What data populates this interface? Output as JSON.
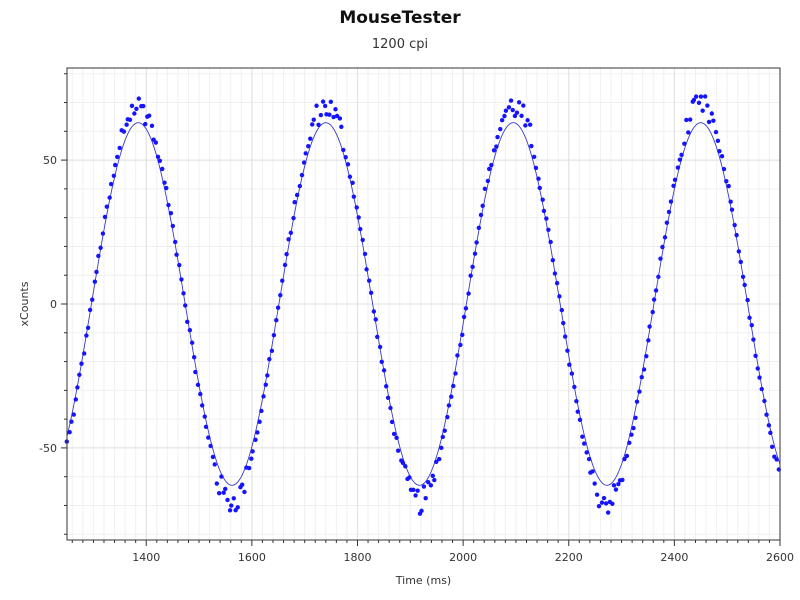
{
  "chart_data": {
    "type": "scatter",
    "title": "MouseTester",
    "subtitle": "1200 cpi",
    "xlabel": "Time (ms)",
    "ylabel": "xCounts",
    "xlim": [
      1250,
      2600
    ],
    "ylim": [
      -82,
      82
    ],
    "xticks": [
      1400,
      1600,
      1800,
      2000,
      2200,
      2400,
      2600
    ],
    "yticks": [
      -50,
      0,
      50
    ],
    "grid": true,
    "legend": "none",
    "colors": {
      "points": "#1414ff",
      "line": "#3a3ac8"
    },
    "series": [
      {
        "style": "points",
        "model": "sine",
        "x_start": 1250,
        "x_end": 2600,
        "x_step": 4,
        "amplitude": 66,
        "period_ms": 355,
        "phase_ms": 1385,
        "offset": 0
      },
      {
        "style": "line",
        "model": "sine",
        "x_start": 1250,
        "x_end": 2600,
        "x_step": 2,
        "amplitude": 63,
        "period_ms": 355,
        "phase_ms": 1385,
        "offset": 0
      }
    ]
  }
}
